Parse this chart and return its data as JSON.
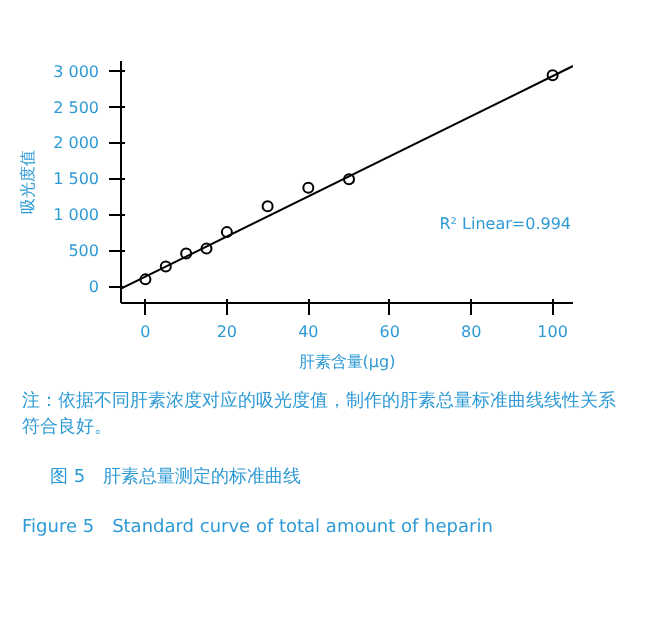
{
  "chart_data": {
    "type": "scatter",
    "xlabel": "肝素含量(μg)",
    "ylabel": "吸光度值",
    "series": [
      {
        "color": "#000000",
        "marker": "circle",
        "x": [
          0,
          5,
          10,
          15,
          20,
          30,
          40,
          50,
          100
        ],
        "values": [
          100,
          280,
          460,
          530,
          760,
          1120,
          1380,
          1500,
          2950
        ]
      },
      {
        "type": "line",
        "color": "#000000",
        "x": [
          -6,
          105
        ],
        "values": [
          -30,
          3080
        ]
      }
    ],
    "xlim": [
      -6,
      105
    ],
    "ylim": [
      -230,
      3150
    ],
    "xticks": [
      0,
      20,
      40,
      60,
      80,
      100
    ],
    "yticks": [
      {
        "value": 0,
        "label": "0"
      },
      {
        "value": 500,
        "label": "500"
      },
      {
        "value": 1000,
        "label": "1 000"
      },
      {
        "value": 1500,
        "label": "1 500"
      },
      {
        "value": 2000,
        "label": "2 000"
      },
      {
        "value": 2500,
        "label": "2 500"
      },
      {
        "value": 3000,
        "label": "3 000"
      }
    ],
    "grid": false,
    "annotations": [
      "R² Linear=0.994",
      "注：依据不同肝素浓度对应的吸光度值，制作的肝素总量标准曲线线性关系符合良好。",
      "图 5　肝素总量测定的标准曲线",
      "Figure 5　Standard curve of total amount of heparin"
    ]
  }
}
